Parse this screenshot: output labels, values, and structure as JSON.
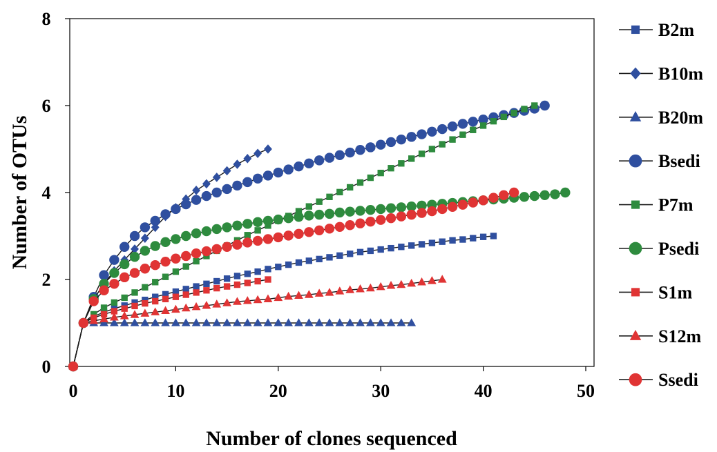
{
  "chart_data": {
    "type": "line",
    "title": "",
    "xlabel": "Number of clones sequenced",
    "ylabel": "Number of OTUs",
    "xlim": [
      0,
      50
    ],
    "ylim": [
      0,
      8
    ],
    "xticks": [
      0,
      10,
      20,
      30,
      40,
      50
    ],
    "yticks": [
      0,
      2,
      4,
      6,
      8
    ],
    "grid": false,
    "legend_position": "right",
    "series": [
      {
        "name": "B2m",
        "color": "#2f4f9f",
        "marker": "square",
        "x": [
          0,
          1,
          2,
          3,
          4,
          5,
          6,
          7,
          8,
          9,
          10,
          11,
          12,
          13,
          14,
          15,
          16,
          17,
          18,
          19,
          20,
          21,
          22,
          23,
          24,
          25,
          26,
          27,
          28,
          29,
          30,
          31,
          32,
          33,
          34,
          35,
          36,
          37,
          38,
          39,
          40,
          41
        ],
        "y": [
          0,
          1,
          1.15,
          1.25,
          1.33,
          1.4,
          1.47,
          1.53,
          1.6,
          1.66,
          1.72,
          1.78,
          1.84,
          1.9,
          1.96,
          2.02,
          2.08,
          2.13,
          2.18,
          2.24,
          2.29,
          2.34,
          2.39,
          2.43,
          2.47,
          2.51,
          2.55,
          2.59,
          2.63,
          2.66,
          2.69,
          2.72,
          2.75,
          2.78,
          2.81,
          2.84,
          2.87,
          2.9,
          2.92,
          2.95,
          2.98,
          3.0
        ]
      },
      {
        "name": "B10m",
        "color": "#2f4f9f",
        "marker": "diamond",
        "x": [
          0,
          1,
          2,
          3,
          4,
          5,
          6,
          7,
          8,
          9,
          10,
          11,
          12,
          13,
          14,
          15,
          16,
          17,
          18,
          19
        ],
        "y": [
          0,
          1,
          1.55,
          1.9,
          2.2,
          2.45,
          2.7,
          2.95,
          3.2,
          3.45,
          3.65,
          3.85,
          4.05,
          4.2,
          4.35,
          4.5,
          4.65,
          4.78,
          4.9,
          5.0
        ]
      },
      {
        "name": "B20m",
        "color": "#2f4f9f",
        "marker": "triangle",
        "x": [
          0,
          1,
          2,
          3,
          4,
          5,
          6,
          7,
          8,
          9,
          10,
          11,
          12,
          13,
          14,
          15,
          16,
          17,
          18,
          19,
          20,
          21,
          22,
          23,
          24,
          25,
          26,
          27,
          28,
          29,
          30,
          31,
          32,
          33
        ],
        "y": [
          0,
          1,
          1,
          1,
          1,
          1,
          1,
          1,
          1,
          1,
          1,
          1,
          1,
          1,
          1,
          1,
          1,
          1,
          1,
          1,
          1,
          1,
          1,
          1,
          1,
          1,
          1,
          1,
          1,
          1,
          1,
          1,
          1,
          1
        ]
      },
      {
        "name": "Bsedi",
        "color": "#2f4f9f",
        "marker": "circle",
        "x": [
          0,
          1,
          2,
          3,
          4,
          5,
          6,
          7,
          8,
          9,
          10,
          11,
          12,
          13,
          14,
          15,
          16,
          17,
          18,
          19,
          20,
          21,
          22,
          23,
          24,
          25,
          26,
          27,
          28,
          29,
          30,
          31,
          32,
          33,
          34,
          35,
          36,
          37,
          38,
          39,
          40,
          41,
          42,
          43,
          44,
          45,
          46
        ],
        "y": [
          0,
          1,
          1.6,
          2.1,
          2.45,
          2.75,
          3.0,
          3.2,
          3.35,
          3.5,
          3.62,
          3.73,
          3.83,
          3.92,
          4.0,
          4.08,
          4.16,
          4.24,
          4.32,
          4.39,
          4.46,
          4.53,
          4.6,
          4.67,
          4.74,
          4.8,
          4.86,
          4.92,
          4.98,
          5.04,
          5.1,
          5.16,
          5.22,
          5.28,
          5.34,
          5.4,
          5.46,
          5.52,
          5.58,
          5.63,
          5.68,
          5.73,
          5.78,
          5.83,
          5.88,
          5.93,
          6.0
        ]
      },
      {
        "name": "P7m",
        "color": "#2e8b3e",
        "marker": "square",
        "x": [
          0,
          1,
          2,
          3,
          4,
          5,
          6,
          7,
          8,
          9,
          10,
          11,
          12,
          13,
          14,
          15,
          16,
          17,
          18,
          19,
          20,
          21,
          22,
          23,
          24,
          25,
          26,
          27,
          28,
          29,
          30,
          31,
          32,
          33,
          34,
          35,
          36,
          37,
          38,
          39,
          40,
          41,
          42,
          43,
          44,
          45
        ],
        "y": [
          0,
          1,
          1.2,
          1.35,
          1.47,
          1.58,
          1.7,
          1.82,
          1.94,
          2.06,
          2.18,
          2.3,
          2.42,
          2.54,
          2.66,
          2.78,
          2.9,
          3.02,
          3.13,
          3.24,
          3.35,
          3.46,
          3.57,
          3.68,
          3.79,
          3.9,
          4.01,
          4.12,
          4.23,
          4.34,
          4.45,
          4.56,
          4.67,
          4.78,
          4.89,
          5.0,
          5.11,
          5.22,
          5.33,
          5.44,
          5.54,
          5.64,
          5.74,
          5.83,
          5.92,
          6.0
        ]
      },
      {
        "name": "Psedi",
        "color": "#2e8b3e",
        "marker": "circle",
        "x": [
          0,
          1,
          2,
          3,
          4,
          5,
          6,
          7,
          8,
          9,
          10,
          11,
          12,
          13,
          14,
          15,
          16,
          17,
          18,
          19,
          20,
          21,
          22,
          23,
          24,
          25,
          26,
          27,
          28,
          29,
          30,
          31,
          32,
          33,
          34,
          35,
          36,
          37,
          38,
          39,
          40,
          41,
          42,
          43,
          44,
          45,
          46,
          47,
          48
        ],
        "y": [
          0,
          1,
          1.55,
          1.9,
          2.15,
          2.35,
          2.52,
          2.66,
          2.77,
          2.86,
          2.93,
          3.0,
          3.06,
          3.11,
          3.16,
          3.2,
          3.24,
          3.28,
          3.32,
          3.35,
          3.38,
          3.41,
          3.44,
          3.47,
          3.49,
          3.51,
          3.54,
          3.56,
          3.58,
          3.6,
          3.62,
          3.64,
          3.66,
          3.68,
          3.7,
          3.72,
          3.74,
          3.76,
          3.78,
          3.8,
          3.82,
          3.84,
          3.86,
          3.88,
          3.9,
          3.92,
          3.94,
          3.96,
          4.0
        ]
      },
      {
        "name": "S1m",
        "color": "#e03434",
        "marker": "square",
        "x": [
          0,
          1,
          2,
          3,
          4,
          5,
          6,
          7,
          8,
          9,
          10,
          11,
          12,
          13,
          14,
          15,
          16,
          17,
          18,
          19
        ],
        "y": [
          0,
          1,
          1.12,
          1.2,
          1.27,
          1.33,
          1.39,
          1.45,
          1.5,
          1.55,
          1.6,
          1.65,
          1.7,
          1.75,
          1.8,
          1.84,
          1.88,
          1.92,
          1.96,
          2.0
        ]
      },
      {
        "name": "S12m",
        "color": "#e03434",
        "marker": "triangle",
        "x": [
          0,
          1,
          2,
          3,
          4,
          5,
          6,
          7,
          8,
          9,
          10,
          11,
          12,
          13,
          14,
          15,
          16,
          17,
          18,
          19,
          20,
          21,
          22,
          23,
          24,
          25,
          26,
          27,
          28,
          29,
          30,
          31,
          32,
          33,
          34,
          35,
          36
        ],
        "y": [
          0,
          1,
          1.05,
          1.09,
          1.13,
          1.16,
          1.19,
          1.22,
          1.25,
          1.28,
          1.31,
          1.34,
          1.37,
          1.4,
          1.43,
          1.46,
          1.49,
          1.51,
          1.53,
          1.55,
          1.58,
          1.61,
          1.63,
          1.65,
          1.68,
          1.7,
          1.73,
          1.76,
          1.78,
          1.8,
          1.83,
          1.86,
          1.88,
          1.91,
          1.94,
          1.97,
          2.0
        ]
      },
      {
        "name": "Ssedi",
        "color": "#e03434",
        "marker": "circle",
        "x": [
          0,
          1,
          2,
          3,
          4,
          5,
          6,
          7,
          8,
          9,
          10,
          11,
          12,
          13,
          14,
          15,
          16,
          17,
          18,
          19,
          20,
          21,
          22,
          23,
          24,
          25,
          26,
          27,
          28,
          29,
          30,
          31,
          32,
          33,
          34,
          35,
          36,
          37,
          38,
          39,
          40,
          41,
          42,
          43
        ],
        "y": [
          0,
          1,
          1.5,
          1.75,
          1.9,
          2.05,
          2.15,
          2.25,
          2.33,
          2.41,
          2.48,
          2.54,
          2.6,
          2.65,
          2.7,
          2.75,
          2.8,
          2.85,
          2.89,
          2.93,
          2.97,
          3.01,
          3.05,
          3.09,
          3.13,
          3.17,
          3.21,
          3.25,
          3.29,
          3.33,
          3.37,
          3.41,
          3.45,
          3.49,
          3.53,
          3.57,
          3.62,
          3.67,
          3.72,
          3.77,
          3.82,
          3.88,
          3.94,
          4.0
        ]
      }
    ]
  }
}
